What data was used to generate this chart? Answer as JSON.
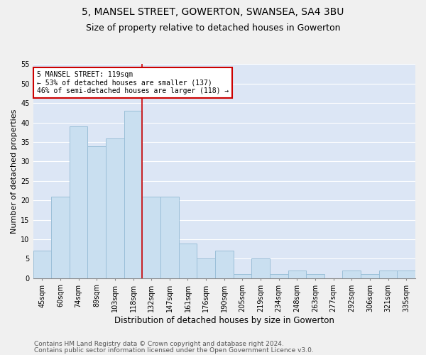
{
  "title1": "5, MANSEL STREET, GOWERTON, SWANSEA, SA4 3BU",
  "title2": "Size of property relative to detached houses in Gowerton",
  "xlabel": "Distribution of detached houses by size in Gowerton",
  "ylabel": "Number of detached properties",
  "categories": [
    "45sqm",
    "60sqm",
    "74sqm",
    "89sqm",
    "103sqm",
    "118sqm",
    "132sqm",
    "147sqm",
    "161sqm",
    "176sqm",
    "190sqm",
    "205sqm",
    "219sqm",
    "234sqm",
    "248sqm",
    "263sqm",
    "277sqm",
    "292sqm",
    "306sqm",
    "321sqm",
    "335sqm"
  ],
  "values": [
    7,
    21,
    39,
    34,
    36,
    43,
    21,
    21,
    9,
    5,
    7,
    1,
    5,
    1,
    2,
    1,
    0,
    2,
    1,
    2,
    2
  ],
  "bar_color": "#c9dff0",
  "bar_edge_color": "#9bbfd8",
  "vline_color": "#cc0000",
  "annotation_text": "5 MANSEL STREET: 119sqm\n← 53% of detached houses are smaller (137)\n46% of semi-detached houses are larger (118) →",
  "annotation_box_color": "#ffffff",
  "annotation_box_edge": "#cc0000",
  "ylim": [
    0,
    55
  ],
  "yticks": [
    0,
    5,
    10,
    15,
    20,
    25,
    30,
    35,
    40,
    45,
    50,
    55
  ],
  "background_color": "#dce6f5",
  "grid_color": "#ffffff",
  "footer1": "Contains HM Land Registry data © Crown copyright and database right 2024.",
  "footer2": "Contains public sector information licensed under the Open Government Licence v3.0.",
  "title1_fontsize": 10,
  "title2_fontsize": 9,
  "xlabel_fontsize": 8.5,
  "ylabel_fontsize": 8,
  "tick_fontsize": 7,
  "footer_fontsize": 6.5,
  "fig_bg": "#f0f0f0"
}
